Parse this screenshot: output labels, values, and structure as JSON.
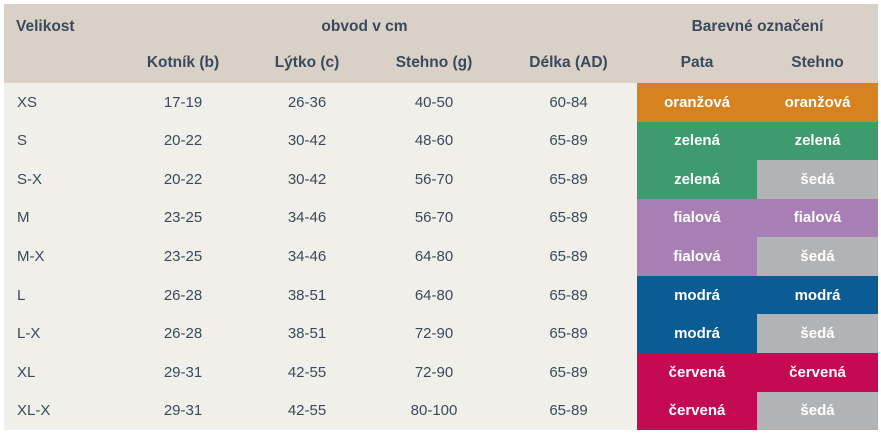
{
  "chart_data": {
    "type": "table",
    "title": "",
    "header": {
      "first_column": "Velikost",
      "group_obvod": "obvod v cm",
      "group_color": "Barevné označení",
      "columns": [
        "Kotník (b)",
        "Lýtko (c)",
        "Stehno (g)",
        "Délka (AD)",
        "Pata",
        "Stehno"
      ]
    },
    "rows": [
      [
        "XS",
        "17-19",
        "26-36",
        "40-50",
        "60-84",
        "oranžová",
        "oranžová"
      ],
      [
        "S",
        "20-22",
        "30-42",
        "48-60",
        "65-89",
        "zelená",
        "zelená"
      ],
      [
        "S-X",
        "20-22",
        "30-42",
        "56-70",
        "65-89",
        "zelená",
        "šedá"
      ],
      [
        "M",
        "23-25",
        "34-46",
        "56-70",
        "65-89",
        "fialová",
        "fialová"
      ],
      [
        "M-X",
        "23-25",
        "34-46",
        "64-80",
        "65-89",
        "fialová",
        "šedá"
      ],
      [
        "L",
        "26-28",
        "38-51",
        "64-80",
        "65-89",
        "modrá",
        "modrá"
      ],
      [
        "L-X",
        "26-28",
        "38-51",
        "72-90",
        "65-89",
        "modrá",
        "šedá"
      ],
      [
        "XL",
        "29-31",
        "42-55",
        "72-90",
        "65-89",
        "červená",
        "červená"
      ],
      [
        "XL-X",
        "29-31",
        "42-55",
        "80-100",
        "65-89",
        "červená",
        "šedá"
      ]
    ],
    "row_colors": [
      [
        "orange",
        "orange"
      ],
      [
        "green",
        "green"
      ],
      [
        "green",
        "gray"
      ],
      [
        "purple",
        "purple"
      ],
      [
        "purple",
        "gray"
      ],
      [
        "blue",
        "blue"
      ],
      [
        "blue",
        "gray"
      ],
      [
        "red",
        "red"
      ],
      [
        "red",
        "gray"
      ]
    ],
    "color_hex": {
      "orange": "#d7821e",
      "green": "#3e9b6e",
      "gray": "#b2b3b5",
      "purple": "#a77fb4",
      "blue": "#0b5c95",
      "red": "#c40a52"
    },
    "styles": {
      "header_bg": "#d9d0c7",
      "row_bg": "#f1efe9",
      "text_color": "#3a4a5c",
      "cell_text_color": "#ffffff"
    },
    "layout_hints": {
      "grid": false,
      "column_group_spans": {
        "obvod v cm": 4,
        "Barevné označení": 2
      }
    }
  }
}
